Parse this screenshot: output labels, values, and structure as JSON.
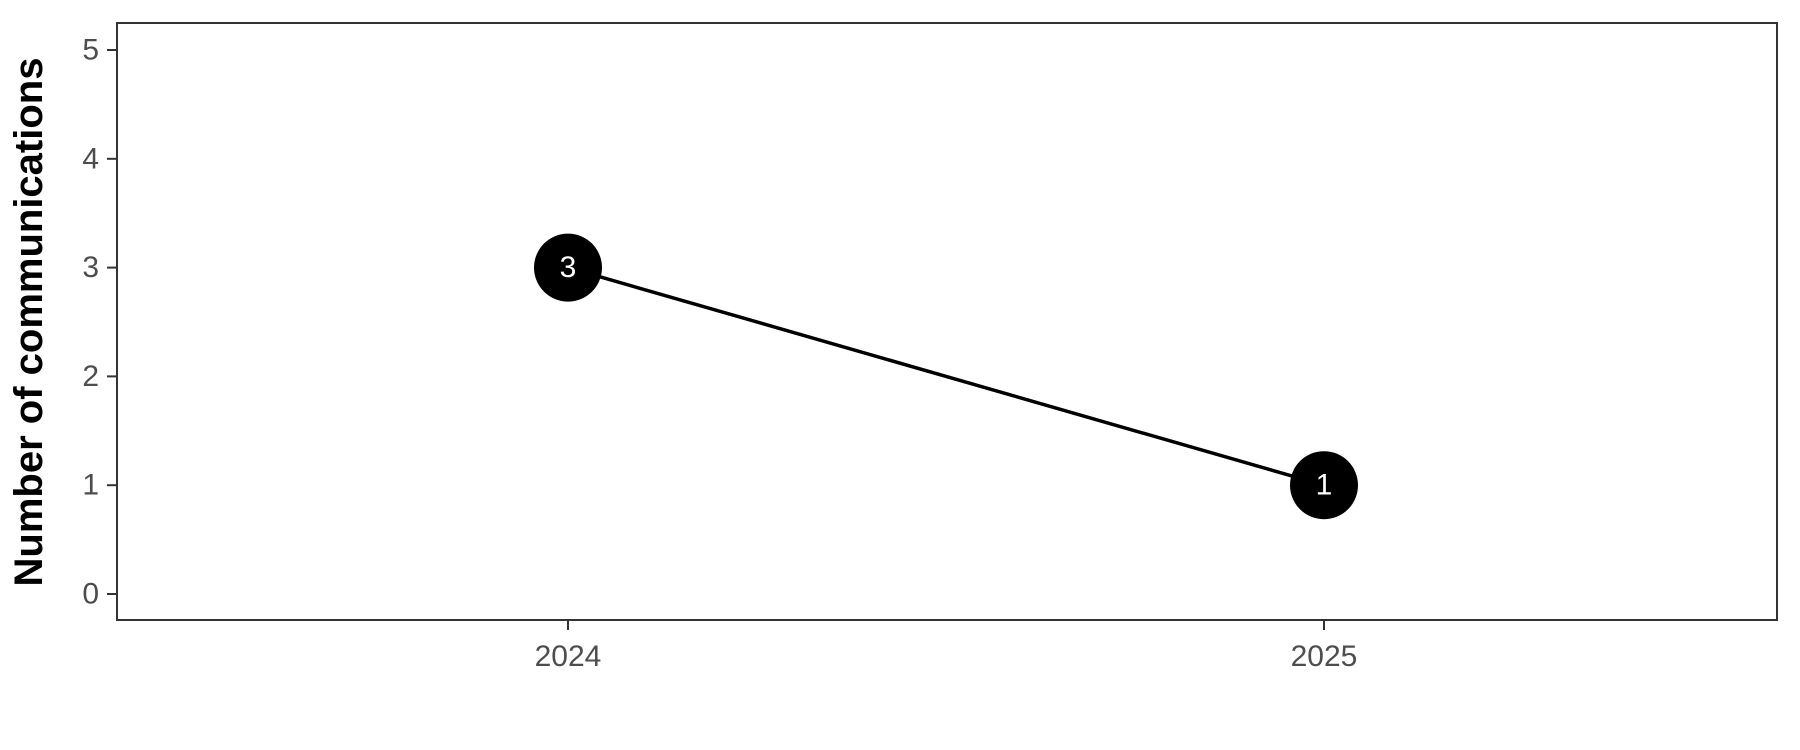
{
  "chart_data": {
    "type": "line",
    "title": "",
    "xlabel": "",
    "ylabel": "Number of communications",
    "categories": [
      "2024",
      "2025"
    ],
    "series": [
      {
        "values": [
          3,
          1
        ]
      }
    ],
    "data_labels": [
      "3",
      "1"
    ],
    "ylim": [
      0,
      5
    ],
    "yticks": [
      "0",
      "1",
      "2",
      "3",
      "4",
      "5"
    ],
    "grid": false,
    "legend": "none",
    "colors": {
      "line": "#000000",
      "marker": "#000000",
      "marker_label": "#ffffff",
      "tick_label": "#4d4d4d",
      "panel_border": "#333333"
    }
  }
}
